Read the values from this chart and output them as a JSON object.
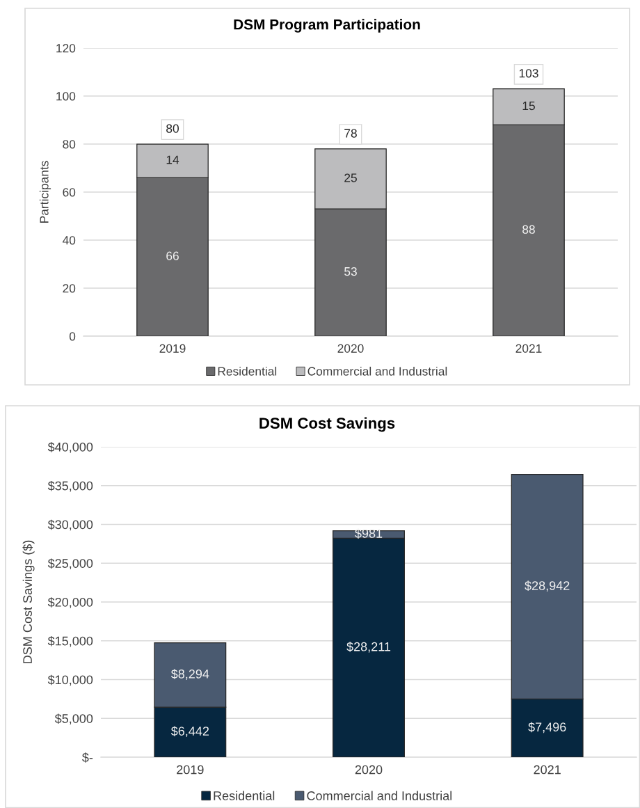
{
  "chart_data": [
    {
      "type": "bar",
      "title": "DSM Program Participation",
      "ylabel": "Participants",
      "categories": [
        "2019",
        "2020",
        "2021"
      ],
      "stacked": true,
      "series": [
        {
          "name": "Residential",
          "color": "#6a6a6c",
          "values": [
            66,
            53,
            88
          ]
        },
        {
          "name": "Commercial and Industrial",
          "color": "#bcbcbe",
          "values": [
            14,
            25,
            15
          ]
        }
      ],
      "ylim": [
        0,
        120
      ],
      "yticks": [
        0,
        20,
        40,
        60,
        80,
        100,
        120
      ],
      "grid": "y",
      "legend": "bottom",
      "data_labels": true,
      "totals": [
        "80",
        "78",
        "103"
      ]
    },
    {
      "type": "bar",
      "title": "DSM Cost Savings",
      "ylabel": "DSM Cost Savings ($)",
      "categories": [
        "2019",
        "2020",
        "2021"
      ],
      "stacked": true,
      "series": [
        {
          "name": "Residential",
          "color": "#062740",
          "values": [
            6442,
            28211,
            7496
          ],
          "value_labels": [
            "$6,442",
            "$28,211",
            "$7,496"
          ]
        },
        {
          "name": "Commercial and Industrial",
          "color": "#4a5a70",
          "values": [
            8294,
            981,
            28942
          ],
          "value_labels": [
            "$8,294",
            "$981",
            "$28,942"
          ]
        }
      ],
      "ylim": [
        0,
        40000
      ],
      "yticks": [
        {
          "value": 0,
          "label": "$-"
        },
        {
          "value": 5000,
          "label": "$5,000"
        },
        {
          "value": 10000,
          "label": "$10,000"
        },
        {
          "value": 15000,
          "label": "$15,000"
        },
        {
          "value": 20000,
          "label": "$20,000"
        },
        {
          "value": 25000,
          "label": "$25,000"
        },
        {
          "value": 30000,
          "label": "$30,000"
        },
        {
          "value": 35000,
          "label": "$35,000"
        },
        {
          "value": 40000,
          "label": "$40,000"
        }
      ],
      "grid": "y",
      "legend": "bottom"
    }
  ]
}
